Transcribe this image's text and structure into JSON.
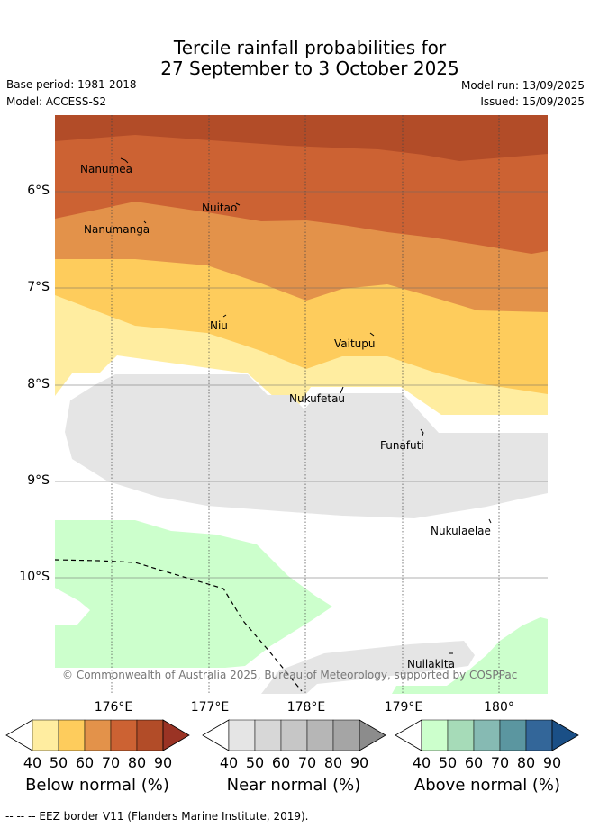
{
  "header": {
    "title_line1": "Tercile rainfall probabilities for",
    "title_line2": "27 September to 3 October 2025",
    "base_period": "Base period: 1981-2018",
    "model": "Model: ACCESS-S2",
    "model_run": "Model run: 13/09/2025",
    "issued": "Issued: 15/09/2025"
  },
  "map": {
    "y_ticks": [
      "6°S",
      "7°S",
      "8°S",
      "9°S",
      "10°S"
    ],
    "x_ticks": [
      "176°E",
      "177°E",
      "178°E",
      "179°E",
      "180°"
    ],
    "places": [
      "Nanumea",
      "Nuitao",
      "Nanumanga",
      "Niu",
      "Vaitupu",
      "Nukufetau",
      "Funafuti",
      "Nukulaelae",
      "Nuilakita"
    ],
    "copyright": "© Commonwealth of Australia 2025, Bureau of Meteorology, supported by COSPPac"
  },
  "colorbars": {
    "ticks": [
      "40",
      "50",
      "60",
      "70",
      "80",
      "90"
    ],
    "below_label": "Below normal (%)",
    "near_label": "Near normal (%)",
    "above_label": "Above normal (%)",
    "below_colors": [
      "#ffeda0",
      "#fecc5c",
      "#e3924a",
      "#cc6233",
      "#b24c28",
      "#9a3324"
    ],
    "near_colors": [
      "#e5e5e5",
      "#d7d7d7",
      "#c6c6c6",
      "#b6b6b6",
      "#a5a5a5",
      "#8c8c8c"
    ],
    "above_colors": [
      "#ccffcc",
      "#a6dbb8",
      "#86bab3",
      "#5b96a0",
      "#336699",
      "#1a4f86"
    ]
  },
  "footer": {
    "legend": "--  --  -- EEZ border V11 (Flanders Marine Institute, 2019)."
  }
}
